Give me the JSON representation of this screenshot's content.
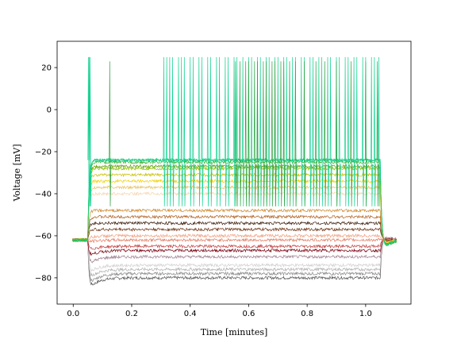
{
  "chart_data": {
    "type": "line",
    "title": "",
    "xlabel": "Time [minutes]",
    "ylabel": "Voltage [mV]",
    "xlim": [
      -0.055,
      1.155
    ],
    "ylim": [
      -92.5,
      32.5
    ],
    "xticks": [
      0.0,
      0.2,
      0.4,
      0.6,
      0.8,
      1.0
    ],
    "xtick_labels": [
      "0.0",
      "0.2",
      "0.4",
      "0.6",
      "0.8",
      "1.0"
    ],
    "yticks": [
      -80,
      -60,
      -40,
      -20,
      0,
      20
    ],
    "ytick_labels": [
      "−80",
      "−60",
      "−40",
      "−20",
      "0",
      "20"
    ],
    "grid": false,
    "legend": "none",
    "stimulus": {
      "onset_min": 0.05,
      "offset_min": 1.05
    },
    "series": [
      {
        "color": "#555555",
        "baseline_mV": -62,
        "step_mV": -80,
        "sag_mV": -86
      },
      {
        "color": "#8a8a8a",
        "baseline_mV": -62,
        "step_mV": -78,
        "sag_mV": -84
      },
      {
        "color": "#b0b0b0",
        "baseline_mV": -62,
        "step_mV": -76,
        "sag_mV": -81
      },
      {
        "color": "#cfcfcf",
        "baseline_mV": -62,
        "step_mV": -74,
        "sag_mV": -78
      },
      {
        "color": "#a08090",
        "baseline_mV": -62,
        "step_mV": -70,
        "sag_mV": -74
      },
      {
        "color": "#7a0010",
        "baseline_mV": -62,
        "step_mV": -67,
        "sag_mV": -70
      },
      {
        "color": "#c04040",
        "baseline_mV": -62,
        "step_mV": -65,
        "sag_mV": -67
      },
      {
        "color": "#e07a60",
        "baseline_mV": -62,
        "step_mV": -62,
        "sag_mV": -63
      },
      {
        "color": "#f0a080",
        "baseline_mV": -62,
        "step_mV": -60,
        "sag_mV": -61
      },
      {
        "color": "#6a2f10",
        "baseline_mV": -62,
        "step_mV": -57,
        "sag_mV": -57
      },
      {
        "color": "#3a1a08",
        "baseline_mV": -62,
        "step_mV": -54,
        "sag_mV": -54
      },
      {
        "color": "#b06020",
        "baseline_mV": -62,
        "step_mV": -51,
        "sag_mV": -51
      },
      {
        "color": "#d08a30",
        "baseline_mV": -62,
        "step_mV": -48,
        "sag_mV": -48
      },
      {
        "color": "#f5d5b0",
        "baseline_mV": -62,
        "step_mV": -40,
        "sag_mV": -40
      },
      {
        "color": "#e8c060",
        "baseline_mV": -62,
        "step_mV": -37,
        "sag_mV": -37
      },
      {
        "color": "#f0d000",
        "baseline_mV": -62,
        "step_mV": -34,
        "sag_mV": -34
      },
      {
        "color": "#c8c000",
        "baseline_mV": -62,
        "step_mV": -31,
        "sag_mV": -31
      },
      {
        "color": "#90c000",
        "baseline_mV": -62,
        "step_mV": -28,
        "sag_mV": -28
      },
      {
        "color": "#60a000",
        "baseline_mV": -62,
        "step_mV": -27,
        "sag_mV": -27
      },
      {
        "color": "#30b030",
        "baseline_mV": -62,
        "step_mV": -25,
        "sag_mV": -25
      },
      {
        "color": "#20c060",
        "baseline_mV": -62,
        "step_mV": -24,
        "sag_mV": -24
      },
      {
        "color": "#10d090",
        "baseline_mV": -62,
        "step_mV": -24,
        "sag_mV": -24
      }
    ],
    "spike_trains": [
      {
        "color": "#10d090",
        "times_min": [
          0.052,
          0.055,
          0.058,
          0.31,
          0.32,
          0.33,
          0.34,
          0.36,
          0.37,
          0.38,
          0.4,
          0.41,
          0.43,
          0.44,
          0.46,
          0.47,
          0.49,
          0.5,
          0.52,
          0.53,
          0.55,
          0.56,
          0.58,
          0.6,
          0.61,
          0.63,
          0.64,
          0.66,
          0.67,
          0.69,
          0.7,
          0.72,
          0.73,
          0.75,
          0.76,
          0.78,
          0.79,
          0.81,
          0.82,
          0.84,
          0.85,
          0.87,
          0.88,
          0.9,
          0.91,
          0.93,
          0.94,
          0.96,
          0.97,
          0.99,
          1.0,
          1.02,
          1.03,
          1.045
        ],
        "peak_mV": 25,
        "trough_mV": -46
      },
      {
        "color": "#30a040",
        "times_min": [
          0.125,
          0.555,
          0.57,
          0.59,
          0.6,
          0.62,
          0.63,
          0.65,
          0.66,
          0.68,
          0.69,
          0.71,
          0.72,
          0.74,
          0.76,
          0.79,
          0.83,
          0.86,
          0.9,
          0.95,
          1.0,
          1.04
        ],
        "peak_mV": 23,
        "trough_mV": -46
      }
    ]
  }
}
